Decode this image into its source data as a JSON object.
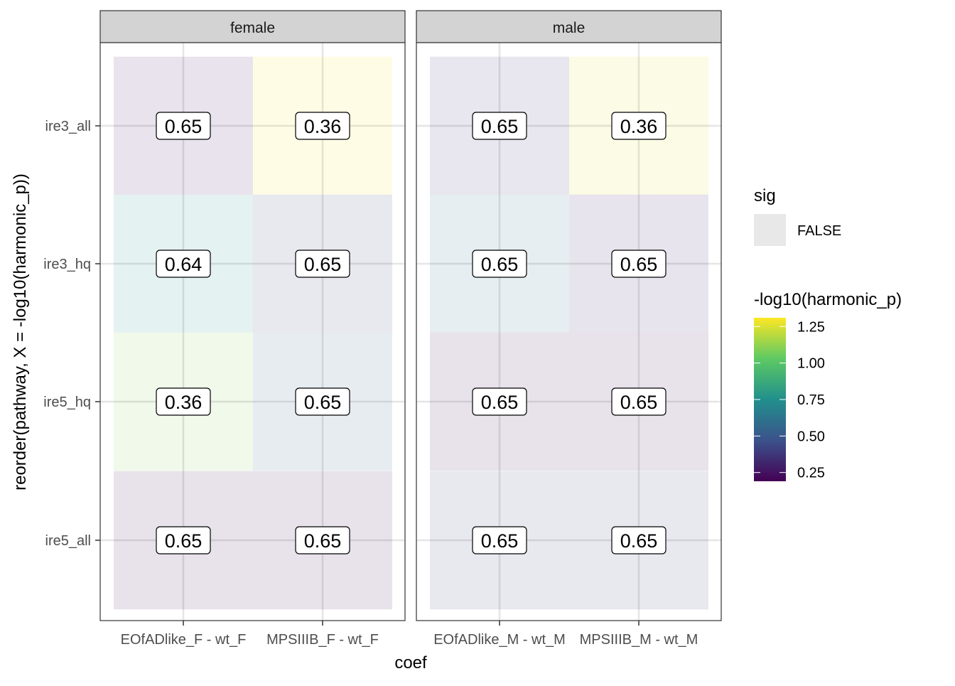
{
  "chart_data": {
    "type": "heatmap",
    "xlabel": "coef",
    "ylabel": "reorder(pathway, X = -log10(harmonic_p))",
    "rows": [
      "ire3_all",
      "ire3_hq",
      "ire5_hq",
      "ire5_all"
    ],
    "panels": [
      {
        "name": "female",
        "columns": [
          "EOfADlike_F - wt_F",
          "MPSIIIB_F - wt_F"
        ],
        "labels": [
          [
            "0.65",
            "0.36"
          ],
          [
            "0.64",
            "0.65"
          ],
          [
            "0.36",
            "0.65"
          ],
          [
            "0.65",
            "0.65"
          ]
        ],
        "fill_values": [
          [
            0.25,
            1.3
          ],
          [
            0.75,
            0.4
          ],
          [
            1.1,
            0.55
          ],
          [
            0.22,
            0.22
          ]
        ]
      },
      {
        "name": "male",
        "columns": [
          "EOfADlike_M - wt_M",
          "MPSIIIB_M - wt_M"
        ],
        "labels": [
          [
            "0.65",
            "0.36"
          ],
          [
            "0.65",
            "0.65"
          ],
          [
            "0.65",
            "0.65"
          ],
          [
            "0.65",
            "0.65"
          ]
        ],
        "fill_values": [
          [
            0.35,
            1.25
          ],
          [
            0.6,
            0.3
          ],
          [
            0.22,
            0.22
          ],
          [
            0.4,
            0.4
          ]
        ]
      }
    ],
    "legend_sig": {
      "title": "sig",
      "entries": [
        "FALSE"
      ],
      "color": "#e8e8e8"
    },
    "legend_fill": {
      "title": "-log10(harmonic_p)",
      "ticks": [
        "1.25",
        "1.00",
        "0.75",
        "0.50",
        "0.25"
      ],
      "tick_values": [
        1.25,
        1.0,
        0.75,
        0.5,
        0.25
      ],
      "range": [
        0.19,
        1.31
      ],
      "palette": "viridis"
    },
    "grid": true,
    "legend_position": "right",
    "strip_color": "#d3d3d3"
  }
}
